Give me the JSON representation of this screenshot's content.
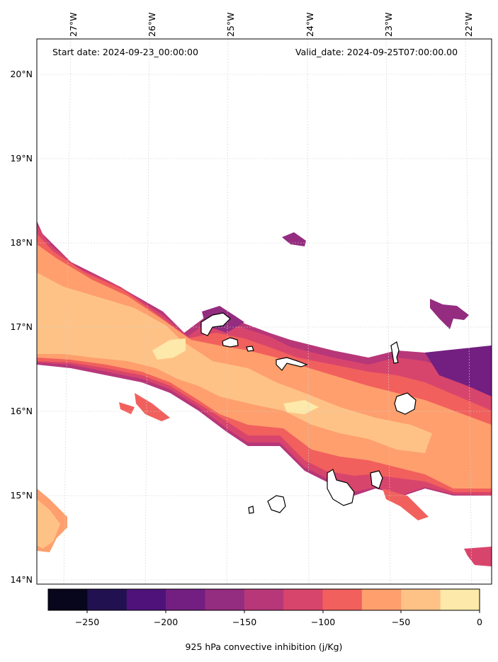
{
  "header": {
    "start_date": "Start date: 2024-09-23_00:00:00",
    "valid_date": "Valid_date: 2024-09-25T07:00:00.00"
  },
  "map": {
    "lon_labels": [
      "27°W",
      "26°W",
      "25°W",
      "24°W",
      "23°W",
      "22°W"
    ],
    "lat_labels": [
      "20°N",
      "19°N",
      "18°N",
      "17°N",
      "16°N",
      "15°N",
      "14°N"
    ],
    "grid": true,
    "field": "925 hPa convective inhibition",
    "islands": "Cape Verde archipelago outlines"
  },
  "colorbar": {
    "label": "925 hPa convective inhibition (j/Kg)",
    "ticks": [
      "−250",
      "−200",
      "−150",
      "−100",
      "−50",
      "0"
    ],
    "levels": [
      -275,
      -250,
      -225,
      -200,
      -175,
      -150,
      -125,
      -100,
      -75,
      -50,
      -25,
      0
    ],
    "colors": [
      "#07061c",
      "#221150",
      "#4f127b",
      "#721f81",
      "#942c80",
      "#b73779",
      "#d8456c",
      "#f1605d",
      "#fe9f6d",
      "#fec287",
      "#fde9a9"
    ]
  }
}
